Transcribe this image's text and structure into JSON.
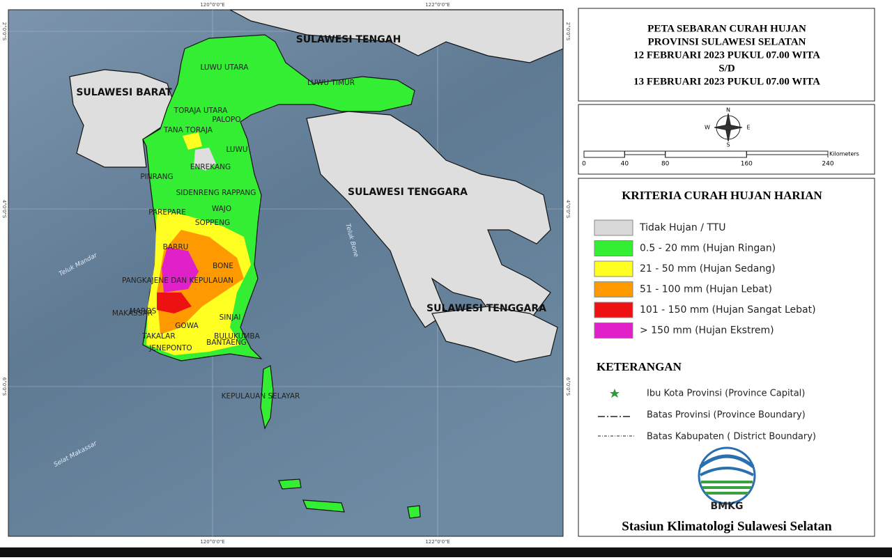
{
  "title": {
    "lines": [
      "PETA SEBARAN CURAH HUJAN",
      "PROVINSI SULAWESI SELATAN",
      "12 FEBRUARI 2023 PUKUL 07.00 WITA",
      "S/D",
      "13 FEBRUARI 2023 PUKUL 07.00 WITA"
    ]
  },
  "map": {
    "regions": [
      "SULAWESI TENGAH",
      "SULAWESI BARAT",
      "SULAWESI TENGGARA",
      "SULAWESI TENGGARA"
    ],
    "districts": [
      "LUWU UTARA",
      "LUWU TIMUR",
      "TORAJA UTARA",
      "PALOPO",
      "TANA TORAJA",
      "LUWU",
      "ENREKANG",
      "PINRANG",
      "SIDENRENG RAPPANG",
      "PAREPARE",
      "WAJO",
      "SOPPENG",
      "BARRU",
      "BONE",
      "PANGKAJENE DAN KEPULAUAN",
      "MAROS",
      "MAKASSAR",
      "GOWA",
      "SINJAI",
      "TAKALAR",
      "BULUKUMBA",
      "BANTAENG",
      "JENEPONTO",
      "KEPULAUAN SELAYAR"
    ],
    "waters": [
      "Teluk Mandar",
      "Teluk Bone",
      "Selat Makassar"
    ],
    "longitudes": [
      "120°0'0\"E",
      "122°0'0\"E"
    ],
    "latitudes": [
      "2°0'0\"S",
      "4°0'0\"S",
      "6°0'0\"S"
    ]
  },
  "compass": [
    "N",
    "E",
    "S",
    "W"
  ],
  "scale": {
    "ticks": [
      0,
      40,
      80,
      160,
      240
    ],
    "unit": "Kilometers"
  },
  "legend": {
    "title": "KRITERIA CURAH HUJAN HARIAN",
    "items": [
      {
        "label": "Tidak Hujan / TTU",
        "color": "#d9d9d9"
      },
      {
        "label": "0.5 - 20 mm (Hujan Ringan)",
        "color": "#33ee33"
      },
      {
        "label": "21 - 50 mm (Hujan Sedang)",
        "color": "#ffff22"
      },
      {
        "label": "51 - 100 mm (Hujan Lebat)",
        "color": "#ff9900"
      },
      {
        "label": "101 - 150 mm (Hujan Sangat Lebat)",
        "color": "#ee1111"
      },
      {
        "label": "> 150 mm (Hujan Ekstrem)",
        "color": "#e020c8"
      }
    ]
  },
  "notes": {
    "title": "KETERANGAN",
    "items": [
      "Ibu Kota Provinsi (Province Capital)",
      "Batas Provinsi (Province Boundary)",
      "Batas Kabupaten ( District Boundary)"
    ]
  },
  "logo": "BMKG",
  "footer": "Stasiun Klimatologi Sulawesi Selatan"
}
